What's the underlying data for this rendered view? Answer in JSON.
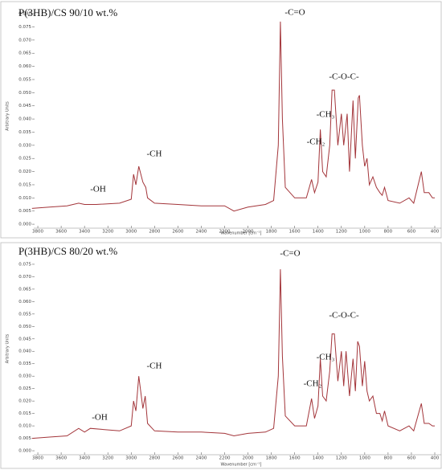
{
  "chart_data": [
    {
      "type": "line",
      "title": "P(3HB)/CS 90/10 wt.%",
      "xlabel": "Wavenumber [cm⁻¹]",
      "ylabel": "Arbitrary Units",
      "color": "#a3353a",
      "x": [
        3850,
        3700,
        3550,
        3450,
        3400,
        3300,
        3100,
        3000,
        2980,
        2960,
        2935,
        2900,
        2875,
        2860,
        2800,
        2600,
        2400,
        2200,
        2120,
        2000,
        1850,
        1780,
        1740,
        1722,
        1705,
        1680,
        1600,
        1500,
        1455,
        1430,
        1400,
        1380,
        1360,
        1330,
        1300,
        1280,
        1260,
        1230,
        1200,
        1180,
        1150,
        1130,
        1100,
        1080,
        1055,
        1045,
        1020,
        1000,
        980,
        960,
        930,
        900,
        870,
        850,
        830,
        800,
        700,
        620,
        580,
        515,
        490,
        450,
        420,
        400
      ],
      "values": [
        0.006,
        0.0065,
        0.007,
        0.008,
        0.0075,
        0.0075,
        0.008,
        0.0095,
        0.019,
        0.015,
        0.022,
        0.016,
        0.014,
        0.01,
        0.008,
        0.0075,
        0.007,
        0.007,
        0.005,
        0.0065,
        0.0075,
        0.009,
        0.03,
        0.077,
        0.04,
        0.014,
        0.01,
        0.01,
        0.017,
        0.012,
        0.016,
        0.036,
        0.02,
        0.018,
        0.03,
        0.051,
        0.051,
        0.03,
        0.042,
        0.03,
        0.042,
        0.02,
        0.047,
        0.025,
        0.048,
        0.049,
        0.03,
        0.022,
        0.025,
        0.015,
        0.018,
        0.014,
        0.012,
        0.011,
        0.014,
        0.009,
        0.008,
        0.01,
        0.008,
        0.02,
        0.012,
        0.012,
        0.01,
        0.01
      ],
      "xlim": [
        4000,
        400
      ],
      "ylim": [
        -0.0015,
        0.0837
      ],
      "xticks": [
        3800,
        3600,
        3400,
        3200,
        3000,
        2800,
        2600,
        2400,
        2200,
        2000,
        1800,
        1600,
        1400,
        1200,
        1000,
        800,
        600,
        400
      ],
      "yticks": [
        {
          "value": 0,
          "label": "0.000"
        },
        {
          "value": 0.005,
          "label": "0.005"
        },
        {
          "value": 0.01,
          "label": "0.010"
        },
        {
          "value": 0.015,
          "label": "0.015"
        },
        {
          "value": 0.02,
          "label": "0.020"
        },
        {
          "value": 0.025,
          "label": "0.025"
        },
        {
          "value": 0.03,
          "label": "0.030"
        },
        {
          "value": 0.035,
          "label": "0.035"
        },
        {
          "value": 0.04,
          "label": "0.040"
        },
        {
          "value": 0.045,
          "label": "0.045"
        },
        {
          "value": 0.05,
          "label": "0.050"
        },
        {
          "value": 0.055,
          "label": "0.055"
        },
        {
          "value": 0.06,
          "label": "0.060"
        },
        {
          "value": 0.065,
          "label": "0.065"
        },
        {
          "value": 0.07,
          "label": "0.070"
        },
        {
          "value": 0.075,
          "label": "0.075"
        },
        {
          "value": 0.08,
          "label": "0.080"
        }
      ],
      "annotations": [
        "-C=O",
        "-C-O-C-",
        "-CH₃",
        "-CH₂",
        "-CH",
        "-OH"
      ]
    },
    {
      "type": "line",
      "title": "P(3HB)/CS 80/20 wt.%",
      "xlabel": "Wavenumber [cm⁻¹]",
      "ylabel": "Arbitrary Units",
      "color": "#a3353a",
      "x": [
        3850,
        3700,
        3550,
        3450,
        3400,
        3350,
        3100,
        3000,
        2980,
        2960,
        2935,
        2900,
        2880,
        2860,
        2800,
        2600,
        2400,
        2200,
        2120,
        2000,
        1850,
        1780,
        1740,
        1722,
        1705,
        1680,
        1600,
        1500,
        1455,
        1430,
        1400,
        1380,
        1360,
        1330,
        1300,
        1280,
        1260,
        1230,
        1200,
        1180,
        1160,
        1130,
        1100,
        1080,
        1060,
        1045,
        1020,
        1000,
        980,
        960,
        930,
        900,
        870,
        850,
        830,
        800,
        700,
        620,
        580,
        515,
        490,
        450,
        420,
        400
      ],
      "values": [
        0.005,
        0.0055,
        0.006,
        0.009,
        0.0075,
        0.009,
        0.008,
        0.01,
        0.02,
        0.016,
        0.03,
        0.017,
        0.022,
        0.011,
        0.008,
        0.0075,
        0.0075,
        0.007,
        0.006,
        0.007,
        0.0075,
        0.009,
        0.03,
        0.073,
        0.038,
        0.014,
        0.01,
        0.01,
        0.021,
        0.013,
        0.018,
        0.037,
        0.022,
        0.02,
        0.032,
        0.047,
        0.047,
        0.028,
        0.04,
        0.026,
        0.04,
        0.022,
        0.037,
        0.024,
        0.044,
        0.042,
        0.026,
        0.036,
        0.024,
        0.02,
        0.022,
        0.015,
        0.015,
        0.012,
        0.016,
        0.01,
        0.008,
        0.01,
        0.008,
        0.019,
        0.011,
        0.011,
        0.01,
        0.01
      ],
      "xlim": [
        4000,
        400
      ],
      "ylim": [
        -0.0016,
        0.0837
      ],
      "xticks": [
        3800,
        3600,
        3400,
        3200,
        3000,
        2800,
        2600,
        2400,
        2200,
        2000,
        1800,
        1600,
        1400,
        1200,
        1000,
        800,
        600,
        400
      ],
      "yticks": [
        {
          "value": 0,
          "label": "0.000"
        },
        {
          "value": 0.005,
          "label": "0.005"
        },
        {
          "value": 0.01,
          "label": "0.010"
        },
        {
          "value": 0.015,
          "label": "0.015"
        },
        {
          "value": 0.02,
          "label": "0.020"
        },
        {
          "value": 0.025,
          "label": "0.025"
        },
        {
          "value": 0.03,
          "label": "0.030"
        },
        {
          "value": 0.035,
          "label": "0.035"
        },
        {
          "value": 0.04,
          "label": "0.040"
        },
        {
          "value": 0.045,
          "label": "0.045"
        },
        {
          "value": 0.05,
          "label": "0.050"
        },
        {
          "value": 0.055,
          "label": "0.055"
        },
        {
          "value": 0.06,
          "label": "0.060"
        },
        {
          "value": 0.065,
          "label": "0.065"
        },
        {
          "value": 0.07,
          "label": "0.070"
        },
        {
          "value": 0.075,
          "label": "0.075"
        }
      ],
      "annotations": [
        "-C=O",
        "-C-O-C-",
        "-CH₃",
        "-CH₂",
        "-CH",
        "-OH"
      ]
    }
  ]
}
